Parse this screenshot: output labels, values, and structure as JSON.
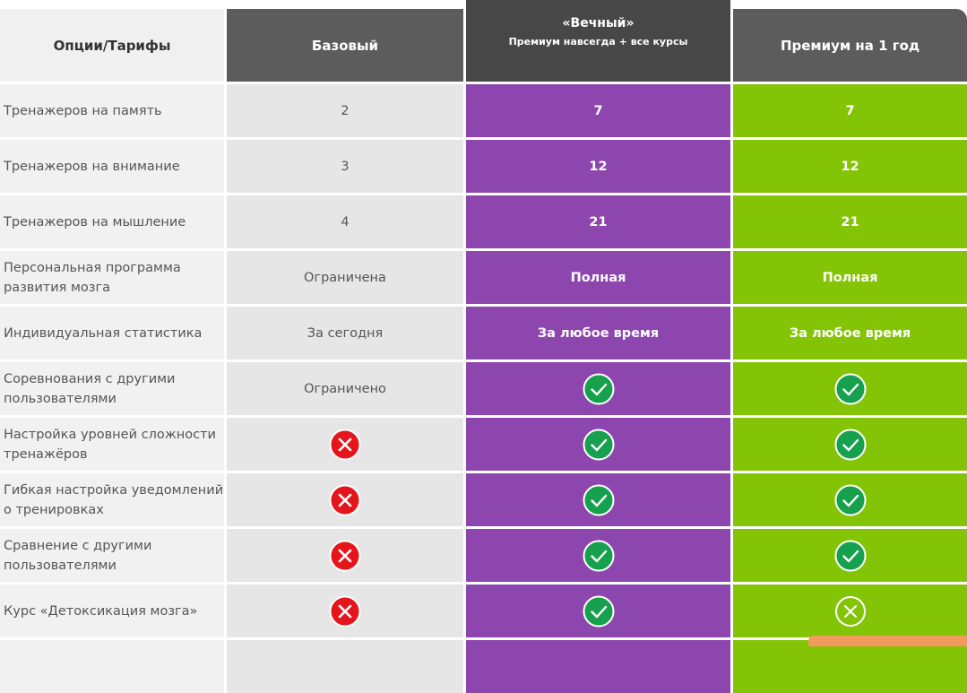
{
  "header": {
    "options": "Опции/Тарифы",
    "basic": "Базовый",
    "eternal_title": "«Вечный»",
    "eternal_subtitle": "Премиум навсегда + все курсы",
    "year": "Премиум на 1 год"
  },
  "rows": [
    {
      "label": "Тренажеров на память",
      "basic": 2,
      "eternal": 7,
      "year": 7
    },
    {
      "label": "Тренажеров на внимание",
      "basic": 3,
      "eternal": 12,
      "year": 12
    },
    {
      "label": "Тренажеров на мышление",
      "basic": 4,
      "eternal": 21,
      "year": 21
    },
    {
      "label": "Персональная программа развития мозга",
      "basic": "Ограничена",
      "eternal": "Полная",
      "year": "Полная"
    },
    {
      "label": "Индивидуальная статистика",
      "basic": "За сегодня",
      "eternal": "За любое время",
      "year": "За любое время"
    },
    {
      "label": "Соревнования с другими пользователями",
      "basic": "Ограничено"
    },
    {
      "label": "Настройка уровней сложности тренажёров"
    },
    {
      "label": "Гибкая настройка уведомлений о тренировках"
    },
    {
      "label": "Сравнение с другими пользователями"
    },
    {
      "label": "Курс «Детоксикация мозга»"
    }
  ]
}
